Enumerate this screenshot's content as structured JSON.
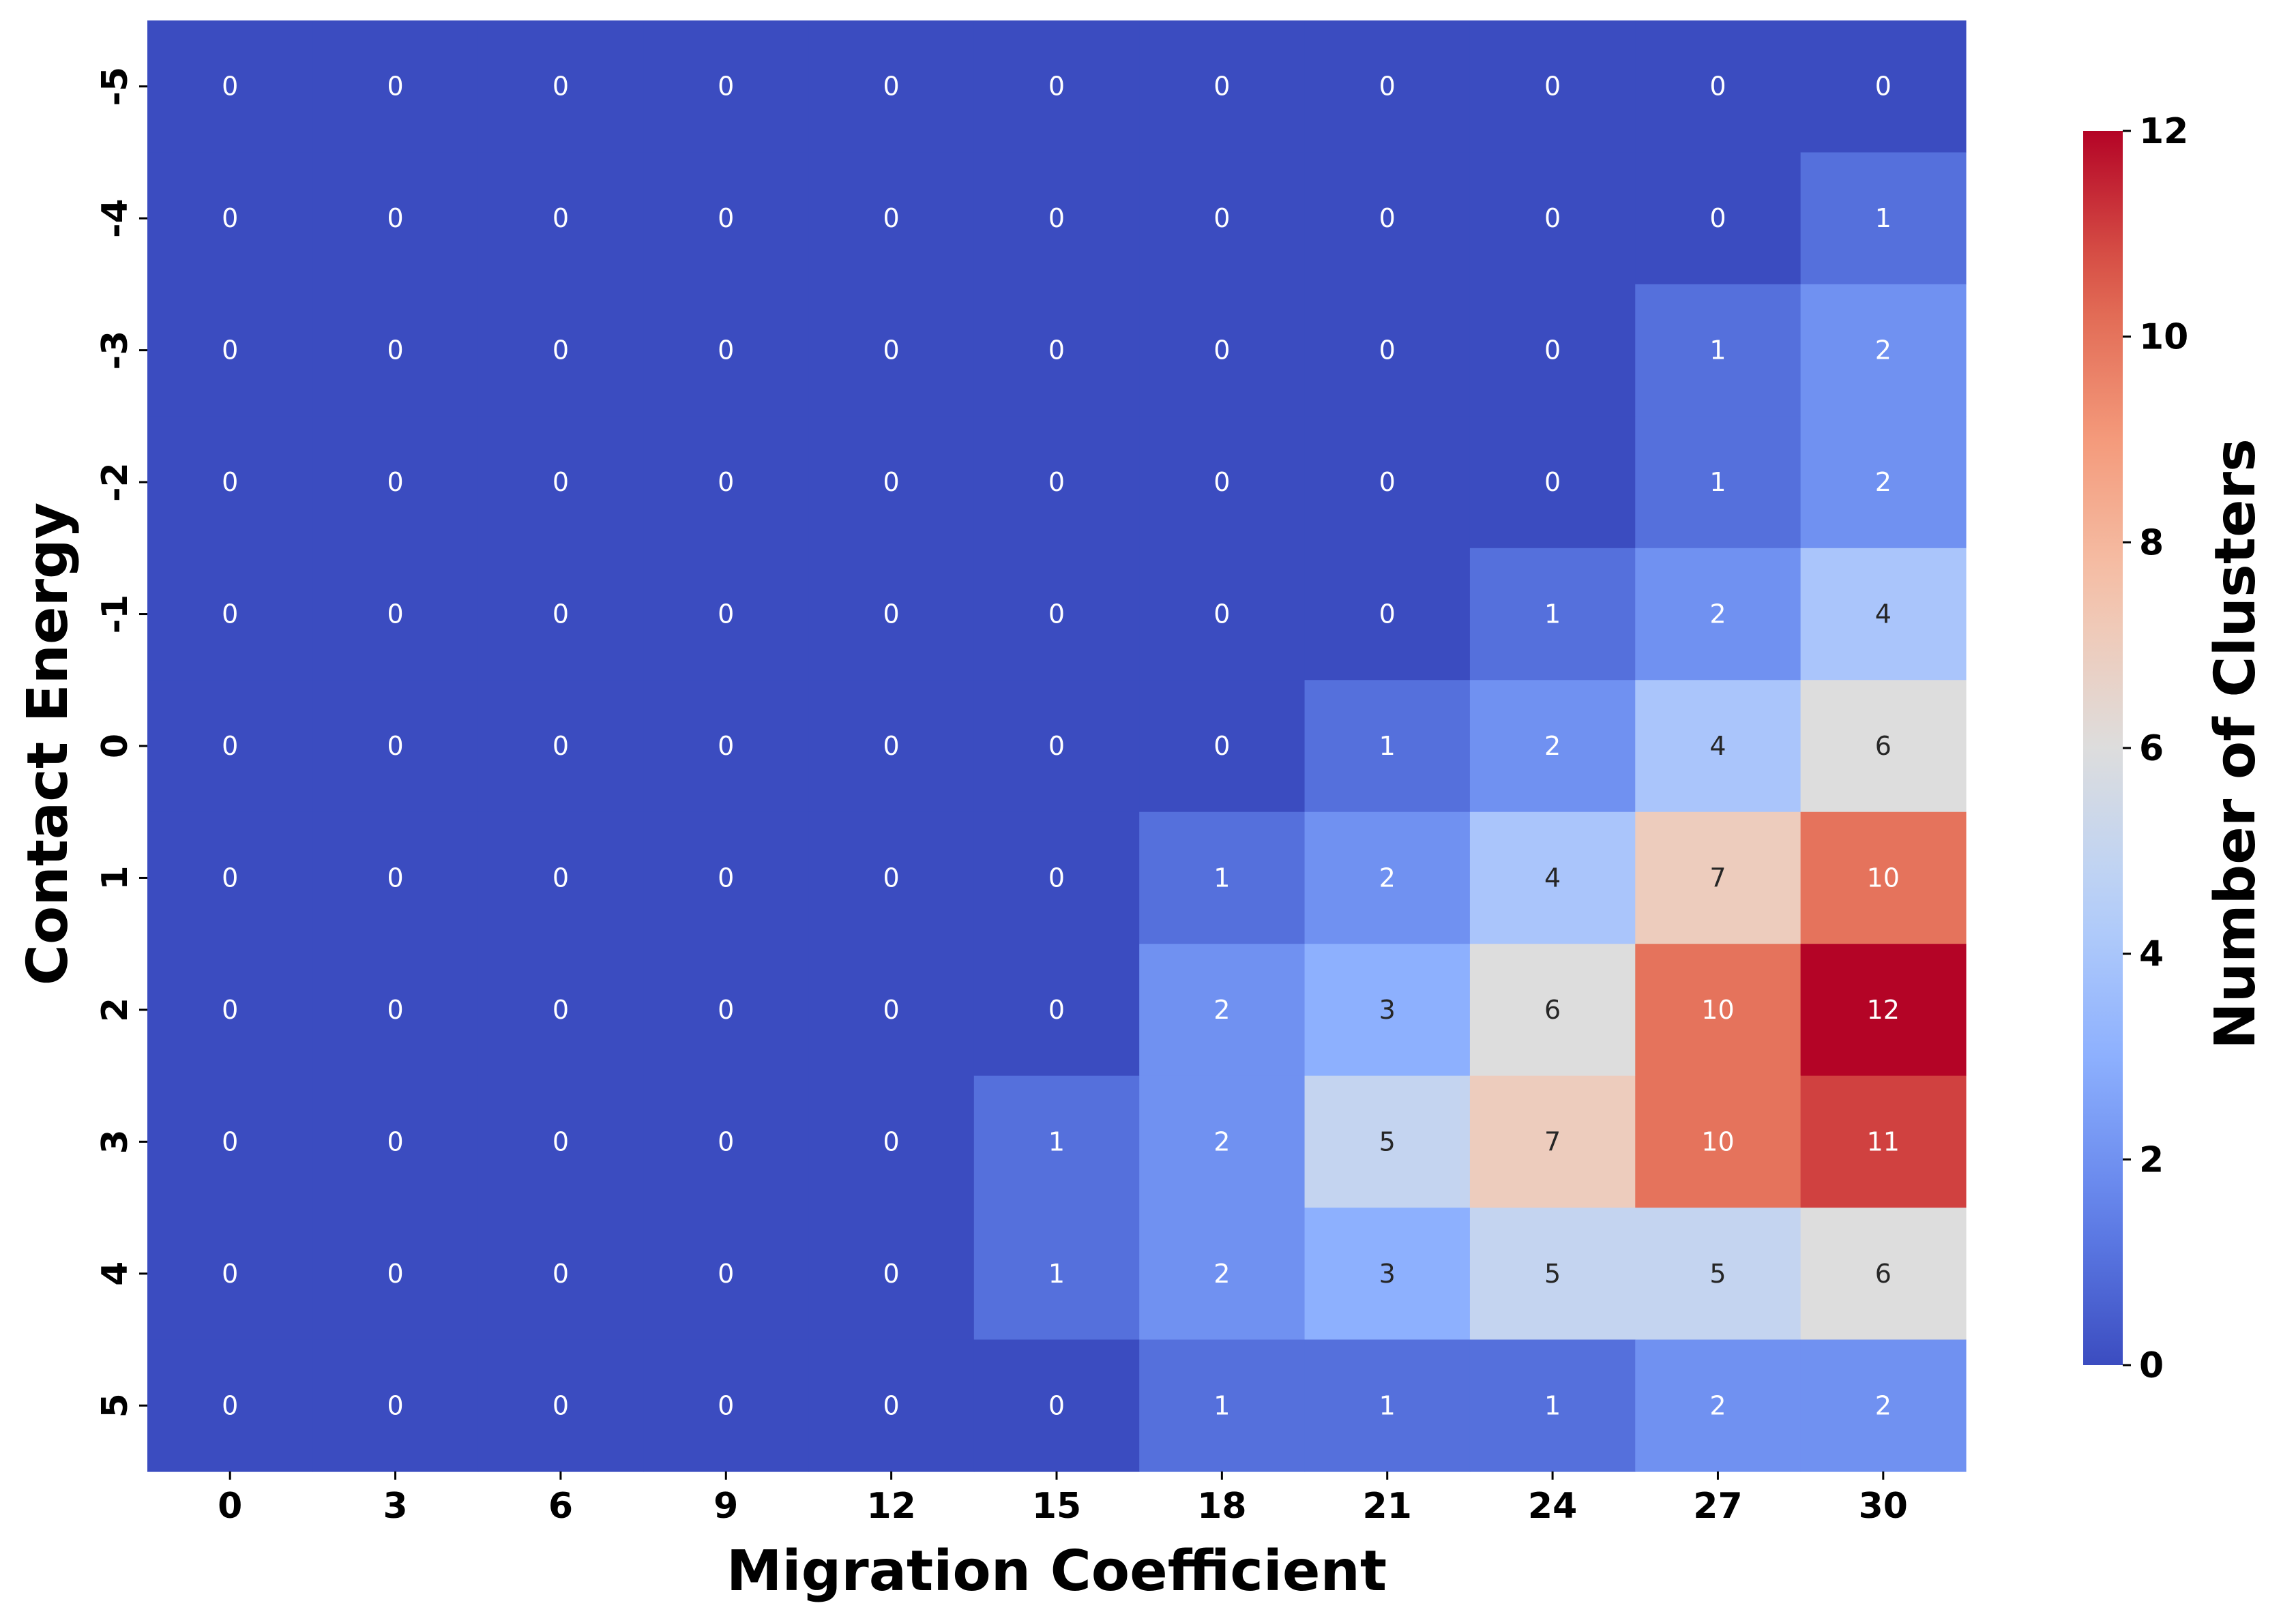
{
  "chart_data": {
    "type": "heatmap",
    "title": "",
    "xlabel": "Migration Coefficient",
    "ylabel": "Contact Energy",
    "x_categories": [
      "0",
      "3",
      "6",
      "9",
      "12",
      "15",
      "18",
      "21",
      "24",
      "27",
      "30"
    ],
    "y_categories": [
      "-5",
      "-4",
      "-3",
      "-2",
      "-1",
      "0",
      "1",
      "2",
      "3",
      "4",
      "5"
    ],
    "values": [
      [
        0,
        0,
        0,
        0,
        0,
        0,
        0,
        0,
        0,
        0,
        0
      ],
      [
        0,
        0,
        0,
        0,
        0,
        0,
        0,
        0,
        0,
        0,
        1
      ],
      [
        0,
        0,
        0,
        0,
        0,
        0,
        0,
        0,
        0,
        1,
        2
      ],
      [
        0,
        0,
        0,
        0,
        0,
        0,
        0,
        0,
        0,
        1,
        2
      ],
      [
        0,
        0,
        0,
        0,
        0,
        0,
        0,
        0,
        1,
        2,
        4
      ],
      [
        0,
        0,
        0,
        0,
        0,
        0,
        0,
        1,
        2,
        4,
        6
      ],
      [
        0,
        0,
        0,
        0,
        0,
        0,
        1,
        2,
        4,
        7,
        10
      ],
      [
        0,
        0,
        0,
        0,
        0,
        0,
        2,
        3,
        6,
        10,
        12
      ],
      [
        0,
        0,
        0,
        0,
        0,
        1,
        2,
        5,
        7,
        10,
        11
      ],
      [
        0,
        0,
        0,
        0,
        0,
        1,
        2,
        3,
        5,
        5,
        6
      ],
      [
        0,
        0,
        0,
        0,
        0,
        0,
        1,
        1,
        1,
        2,
        2
      ]
    ],
    "colormap": "coolwarm",
    "colorbar": {
      "label": "Number of Clusters",
      "range": [
        0,
        12
      ],
      "ticks": [
        "0",
        "2",
        "4",
        "6",
        "8",
        "10",
        "12"
      ]
    },
    "annotations": true,
    "grid": false
  }
}
